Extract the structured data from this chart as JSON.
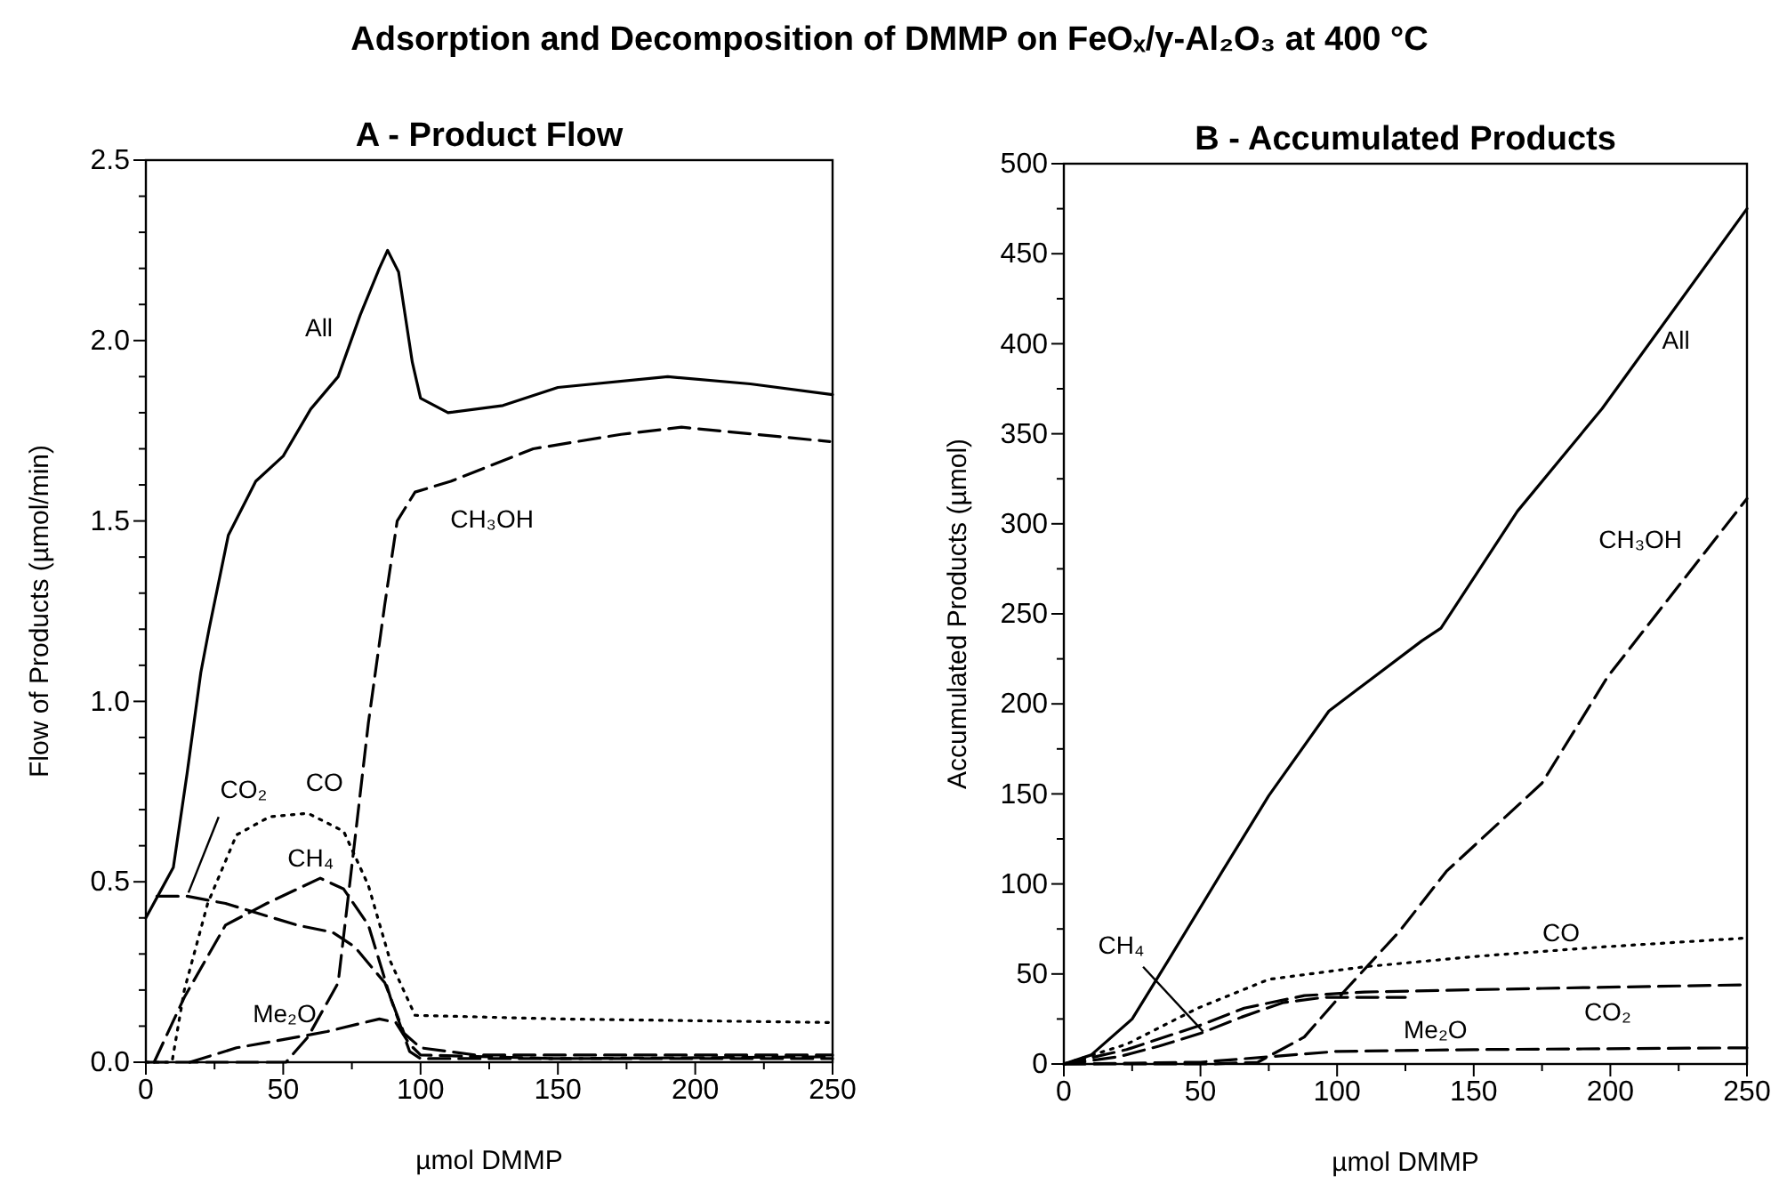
{
  "chart_data": [
    {
      "type": "line",
      "title": "Adsorption and Decomposition of DMMP on FeOₓ/γ-Al₂O₃ at 400 °C",
      "subtitle": "A - Product Flow",
      "xlabel": "µmol DMMP",
      "ylabel": "Flow of Products (µmol/min)",
      "xlim": [
        0,
        250
      ],
      "ylim": [
        0,
        2.5
      ],
      "xticks": [
        0,
        {
          "value": 25,
          "label": null
        },
        50,
        {
          "value": 75,
          "label": null
        },
        100,
        {
          "value": 125,
          "label": null
        },
        150,
        {
          "value": 175,
          "label": null
        },
        200,
        {
          "value": 225,
          "label": null
        },
        250
      ],
      "yticks": [
        {
          "value": 0,
          "label": "0.0"
        },
        {
          "value": 0.1,
          "label": null
        },
        {
          "value": 0.2,
          "label": null
        },
        {
          "value": 0.3,
          "label": null
        },
        {
          "value": 0.4,
          "label": null
        },
        0.5,
        {
          "value": 0.6,
          "label": null
        },
        {
          "value": 0.7,
          "label": null
        },
        {
          "value": 0.8,
          "label": null
        },
        {
          "value": 0.9,
          "label": null
        },
        {
          "value": 1,
          "label": "1.0"
        },
        {
          "value": 1.1,
          "label": null
        },
        {
          "value": 1.2,
          "label": null
        },
        {
          "value": 1.3,
          "label": null
        },
        {
          "value": 1.4,
          "label": null
        },
        1.5,
        {
          "value": 1.6,
          "label": null
        },
        {
          "value": 1.7,
          "label": null
        },
        {
          "value": 1.8,
          "label": null
        },
        {
          "value": 1.9,
          "label": null
        },
        {
          "value": 2,
          "label": "2.0"
        },
        {
          "value": 2.1,
          "label": null
        },
        {
          "value": 2.2,
          "label": null
        },
        {
          "value": 2.3,
          "label": null
        },
        {
          "value": 2.4,
          "label": null
        },
        2.5
      ],
      "series": [
        {
          "name": "All",
          "color": "#000000",
          "line_style": "solid",
          "x": [
            0,
            5,
            10,
            15,
            20,
            23,
            30,
            40,
            50,
            60,
            70,
            78,
            85,
            88,
            92,
            97,
            100,
            110,
            130,
            150,
            190,
            220,
            250
          ],
          "values": [
            0.4,
            0.47,
            0.54,
            0.8,
            1.08,
            1.2,
            1.46,
            1.61,
            1.68,
            1.81,
            1.9,
            2.07,
            2.2,
            2.25,
            2.19,
            1.94,
            1.84,
            1.8,
            1.82,
            1.87,
            1.9,
            1.88,
            1.85
          ]
        },
        {
          "name": "CH₃OH",
          "color": "#000000",
          "line_style": "dashed",
          "x": [
            0,
            51,
            59,
            70,
            76,
            81,
            87,
            91.5,
            98,
            111,
            141,
            173,
            195,
            249
          ],
          "values": [
            0,
            0,
            0.07,
            0.22,
            0.61,
            0.94,
            1.27,
            1.5,
            1.58,
            1.61,
            1.7,
            1.74,
            1.76,
            1.72
          ]
        },
        {
          "name": "CO",
          "color": "#000000",
          "line_style": "dotted",
          "x": [
            0,
            9.5,
            14,
            22.5,
            33,
            45,
            59,
            72,
            81,
            89,
            98,
            150,
            250
          ],
          "values": [
            0,
            0,
            0.2,
            0.44,
            0.63,
            0.68,
            0.69,
            0.64,
            0.49,
            0.28,
            0.13,
            0.12,
            0.11
          ]
        },
        {
          "name": "CO₂",
          "color": "#000000",
          "line_style": "dashed",
          "x": [
            4,
            15,
            29,
            55,
            68,
            76,
            87,
            94,
            100,
            120,
            250
          ],
          "values": [
            0.46,
            0.46,
            0.44,
            0.38,
            0.36,
            0.32,
            0.22,
            0.08,
            0.04,
            0.02,
            0.02
          ]
        },
        {
          "name": "CH₄",
          "color": "#000000",
          "line_style": "dashed",
          "x": [
            3,
            14,
            29,
            44,
            63.5,
            72,
            81,
            89,
            96,
            100,
            250
          ],
          "values": [
            0,
            0.18,
            0.38,
            0.44,
            0.51,
            0.48,
            0.38,
            0.18,
            0.03,
            0.01,
            0.01
          ]
        },
        {
          "name": "Me₂O",
          "color": "#000000",
          "line_style": "dashed",
          "x": [
            16,
            33,
            48,
            66,
            85,
            91,
            96,
            100,
            150,
            250
          ],
          "values": [
            0,
            0.04,
            0.06,
            0.085,
            0.12,
            0.11,
            0.05,
            0.02,
            0.01,
            0.015
          ]
        }
      ]
    },
    {
      "type": "line",
      "subtitle": "B - Accumulated Products",
      "xlabel": "µmol DMMP",
      "ylabel": "Accumulated Products (µmol)",
      "xlim": [
        0,
        250
      ],
      "ylim": [
        0,
        500
      ],
      "xticks": [
        0,
        {
          "value": 25,
          "label": null
        },
        50,
        {
          "value": 75,
          "label": null
        },
        100,
        {
          "value": 125,
          "label": null
        },
        150,
        {
          "value": 175,
          "label": null
        },
        200,
        {
          "value": 225,
          "label": null
        },
        250
      ],
      "yticks": [
        0,
        {
          "value": 25,
          "label": null
        },
        50,
        {
          "value": 75,
          "label": null
        },
        100,
        {
          "value": 125,
          "label": null
        },
        150,
        {
          "value": 175,
          "label": null
        },
        200,
        {
          "value": 225,
          "label": null
        },
        250,
        {
          "value": 275,
          "label": null
        },
        300,
        {
          "value": 325,
          "label": null
        },
        350,
        {
          "value": 375,
          "label": null
        },
        400,
        {
          "value": 425,
          "label": null
        },
        450,
        {
          "value": 475,
          "label": null
        },
        500
      ],
      "series": [
        {
          "name": "All",
          "color": "#000000",
          "line_style": "solid",
          "x": [
            0,
            10,
            25,
            38,
            58,
            75,
            97,
            131,
            138,
            166,
            197,
            250
          ],
          "values": [
            0,
            5,
            25,
            57,
            107,
            149,
            196,
            235,
            242,
            307,
            364,
            475
          ]
        },
        {
          "name": "CH₃OH",
          "color": "#000000",
          "line_style": "dashed",
          "x": [
            0,
            55,
            71,
            88,
            103,
            123,
            140,
            175,
            199,
            218,
            250
          ],
          "values": [
            0,
            0,
            1,
            15,
            41,
            74,
            107,
            156,
            215,
            252,
            314
          ]
        },
        {
          "name": "CO",
          "color": "#000000",
          "line_style": "dotted",
          "x": [
            0,
            23,
            49,
            75,
            110,
            153,
            197,
            250
          ],
          "values": [
            0,
            11,
            31,
            47,
            54,
            60,
            65,
            70
          ]
        },
        {
          "name": "CO₂",
          "color": "#000000",
          "line_style": "dashed",
          "x": [
            0,
            23,
            49,
            66,
            88,
            110,
            175,
            250
          ],
          "values": [
            0,
            8,
            21,
            31,
            38,
            40,
            42,
            44
          ]
        },
        {
          "name": "CH₄",
          "color": "#000000",
          "line_style": "dashed",
          "x": [
            0,
            20,
            35,
            50,
            65,
            80,
            95,
            125
          ],
          "values": [
            0,
            4,
            10,
            17,
            26,
            34,
            37,
            37
          ]
        },
        {
          "name": "Me₂O",
          "color": "#000000",
          "line_style": "dashed",
          "x": [
            0,
            50,
            75,
            100,
            150,
            250
          ],
          "values": [
            0,
            1,
            4,
            7,
            8,
            9
          ]
        }
      ]
    }
  ]
}
